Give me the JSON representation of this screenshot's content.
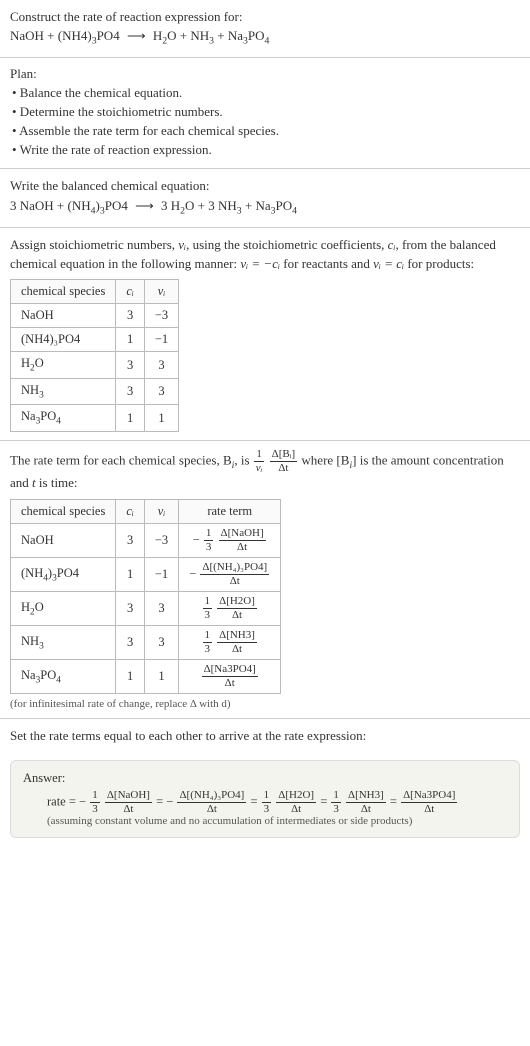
{
  "intro": {
    "prompt": "Construct the rate of reaction expression for:",
    "equation_left": "NaOH + (NH4)₃PO4",
    "equation_right": "H₂O + NH₃ + Na₃PO₄",
    "arrow": "⟶"
  },
  "plan": {
    "title": "Plan:",
    "items": [
      "• Balance the chemical equation.",
      "• Determine the stoichiometric numbers.",
      "• Assemble the rate term for each chemical species.",
      "• Write the rate of reaction expression."
    ]
  },
  "balanced": {
    "title": "Write the balanced chemical equation:",
    "left": "3 NaOH + (NH₄)₃PO4",
    "right": "3 H₂O + 3 NH₃ + Na₃PO₄",
    "arrow": "⟶"
  },
  "assign": {
    "text_a": "Assign stoichiometric numbers, ",
    "nu_i": "νᵢ",
    "text_b": ", using the stoichiometric coefficients, ",
    "c_i": "cᵢ",
    "text_c": ", from the balanced chemical equation in the following manner: ",
    "rel1": "νᵢ = −cᵢ",
    "text_d": " for reactants and ",
    "rel2": "νᵢ = cᵢ",
    "text_e": " for products:"
  },
  "table1": {
    "headers": [
      "chemical species",
      "cᵢ",
      "νᵢ"
    ],
    "rows": [
      [
        "NaOH",
        "3",
        "−3"
      ],
      [
        "(NH4)₃PO4",
        "1",
        "−1"
      ],
      [
        "H₂O",
        "3",
        "3"
      ],
      [
        "NH₃",
        "3",
        "3"
      ],
      [
        "Na₃PO₄",
        "1",
        "1"
      ]
    ]
  },
  "rate_intro": {
    "text_a": "The rate term for each chemical species, B",
    "sub_i": "i",
    "text_b": ", is ",
    "frac1_num": "1",
    "frac1_den": "νᵢ",
    "frac2_num": "Δ[Bᵢ]",
    "frac2_den": "Δt",
    "text_c": " where [B",
    "text_d": "] is the amount concentration and ",
    "t": "t",
    "text_e": " is time:"
  },
  "table2": {
    "headers": [
      "chemical species",
      "cᵢ",
      "νᵢ",
      "rate term"
    ],
    "rows": [
      {
        "species": "NaOH",
        "c": "3",
        "nu": "−3",
        "sign": "−",
        "coef_num": "1",
        "coef_den": "3",
        "d_num": "Δ[NaOH]",
        "d_den": "Δt"
      },
      {
        "species": "(NH₄)₃PO4",
        "c": "1",
        "nu": "−1",
        "sign": "−",
        "coef_num": "",
        "coef_den": "",
        "d_num": "Δ[(NH₄)₃PO4]",
        "d_den": "Δt"
      },
      {
        "species": "H₂O",
        "c": "3",
        "nu": "3",
        "sign": "",
        "coef_num": "1",
        "coef_den": "3",
        "d_num": "Δ[H2O]",
        "d_den": "Δt"
      },
      {
        "species": "NH₃",
        "c": "3",
        "nu": "3",
        "sign": "",
        "coef_num": "1",
        "coef_den": "3",
        "d_num": "Δ[NH3]",
        "d_den": "Δt"
      },
      {
        "species": "Na₃PO₄",
        "c": "1",
        "nu": "1",
        "sign": "",
        "coef_num": "",
        "coef_den": "",
        "d_num": "Δ[Na3PO4]",
        "d_den": "Δt"
      }
    ],
    "note": "(for infinitesimal rate of change, replace Δ with d)"
  },
  "set_equal": {
    "text": "Set the rate terms equal to each other to arrive at the rate expression:"
  },
  "answer": {
    "title": "Answer:",
    "prefix": "rate = ",
    "terms": [
      {
        "sign": "−",
        "coef_num": "1",
        "coef_den": "3",
        "d_num": "Δ[NaOH]",
        "d_den": "Δt"
      },
      {
        "sign": "−",
        "coef_num": "",
        "coef_den": "",
        "d_num": "Δ[(NH₄)₃PO4]",
        "d_den": "Δt"
      },
      {
        "sign": "",
        "coef_num": "1",
        "coef_den": "3",
        "d_num": "Δ[H2O]",
        "d_den": "Δt"
      },
      {
        "sign": "",
        "coef_num": "1",
        "coef_den": "3",
        "d_num": "Δ[NH3]",
        "d_den": "Δt"
      },
      {
        "sign": "",
        "coef_num": "",
        "coef_den": "",
        "d_num": "Δ[Na3PO4]",
        "d_den": "Δt"
      }
    ],
    "eq": " = ",
    "note": "(assuming constant volume and no accumulation of intermediates or side products)"
  },
  "style": {
    "body_font_size": 13,
    "border_color": "#cccccc",
    "table_border_color": "#bbbbbb",
    "answer_bg": "#f4f4ee",
    "text_color": "#333333"
  }
}
